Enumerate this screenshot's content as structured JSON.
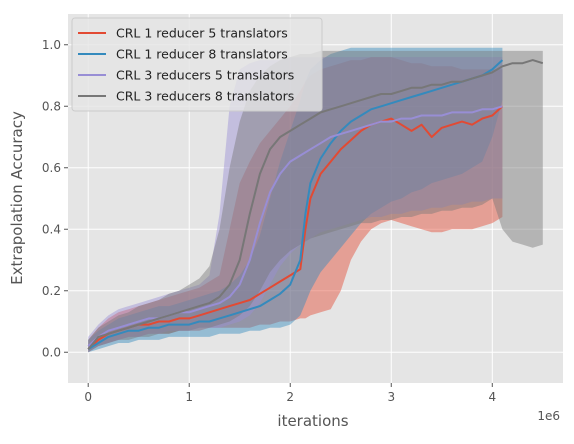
{
  "chart_data": {
    "type": "line",
    "title": "",
    "xlabel": "iterations",
    "ylabel": "Extrapolation Accuracy",
    "x_offset_label": "1e6",
    "xlim": [
      -200000,
      4700000
    ],
    "ylim": [
      -0.1,
      1.1
    ],
    "x_ticks": [
      0,
      1000000,
      2000000,
      3000000,
      4000000
    ],
    "x_tick_labels": [
      "0",
      "1",
      "2",
      "3",
      "4"
    ],
    "y_ticks": [
      0.0,
      0.2,
      0.4,
      0.6,
      0.8,
      1.0
    ],
    "y_tick_labels": [
      "0.0",
      "0.2",
      "0.4",
      "0.6",
      "0.8",
      "1.0"
    ],
    "grid": true,
    "legend_position": "top-left",
    "colors": {
      "plot_background": "#e5e5e5",
      "grid": "#ffffff",
      "tick_label": "#555555",
      "axis_label": "#555555"
    },
    "series": [
      {
        "name": "CRL 1 reducer 5 translators",
        "color": "#e24a33",
        "x": [
          0,
          100000,
          200000,
          300000,
          400000,
          500000,
          600000,
          700000,
          800000,
          900000,
          1000000,
          1100000,
          1200000,
          1300000,
          1400000,
          1500000,
          1600000,
          1700000,
          1800000,
          1900000,
          2000000,
          2100000,
          2150000,
          2200000,
          2300000,
          2400000,
          2500000,
          2600000,
          2700000,
          2800000,
          2900000,
          3000000,
          3100000,
          3200000,
          3300000,
          3400000,
          3500000,
          3600000,
          3700000,
          3800000,
          3900000,
          4000000,
          4100000
        ],
        "y": [
          0.01,
          0.04,
          0.06,
          0.07,
          0.08,
          0.09,
          0.09,
          0.1,
          0.1,
          0.11,
          0.11,
          0.12,
          0.13,
          0.14,
          0.15,
          0.16,
          0.17,
          0.19,
          0.21,
          0.23,
          0.25,
          0.27,
          0.4,
          0.5,
          0.58,
          0.62,
          0.66,
          0.69,
          0.72,
          0.74,
          0.75,
          0.76,
          0.74,
          0.72,
          0.74,
          0.7,
          0.73,
          0.74,
          0.75,
          0.74,
          0.76,
          0.77,
          0.8
        ],
        "upper": [
          0.04,
          0.08,
          0.11,
          0.13,
          0.14,
          0.15,
          0.16,
          0.17,
          0.18,
          0.19,
          0.2,
          0.21,
          0.23,
          0.25,
          0.4,
          0.55,
          0.62,
          0.68,
          0.72,
          0.76,
          0.8,
          0.85,
          0.88,
          0.9,
          0.92,
          0.93,
          0.94,
          0.95,
          0.95,
          0.96,
          0.96,
          0.96,
          0.95,
          0.94,
          0.94,
          0.93,
          0.93,
          0.93,
          0.92,
          0.92,
          0.92,
          0.92,
          0.92
        ],
        "lower": [
          0.0,
          0.02,
          0.03,
          0.04,
          0.05,
          0.05,
          0.06,
          0.06,
          0.06,
          0.07,
          0.07,
          0.07,
          0.08,
          0.08,
          0.08,
          0.08,
          0.08,
          0.09,
          0.09,
          0.1,
          0.1,
          0.11,
          0.11,
          0.12,
          0.13,
          0.14,
          0.2,
          0.3,
          0.36,
          0.4,
          0.42,
          0.43,
          0.42,
          0.41,
          0.4,
          0.39,
          0.39,
          0.4,
          0.4,
          0.4,
          0.41,
          0.42,
          0.44
        ]
      },
      {
        "name": "CRL 1 reducer 8 translators",
        "color": "#348abd",
        "x": [
          0,
          100000,
          200000,
          300000,
          400000,
          500000,
          600000,
          700000,
          800000,
          900000,
          1000000,
          1100000,
          1200000,
          1300000,
          1400000,
          1500000,
          1600000,
          1700000,
          1800000,
          1900000,
          2000000,
          2100000,
          2150000,
          2200000,
          2300000,
          2400000,
          2500000,
          2600000,
          2700000,
          2800000,
          2900000,
          3000000,
          3100000,
          3200000,
          3300000,
          3400000,
          3500000,
          3600000,
          3700000,
          3800000,
          3900000,
          4000000,
          4100000
        ],
        "y": [
          0.01,
          0.03,
          0.05,
          0.06,
          0.07,
          0.07,
          0.08,
          0.08,
          0.09,
          0.09,
          0.09,
          0.1,
          0.1,
          0.11,
          0.12,
          0.13,
          0.14,
          0.15,
          0.17,
          0.19,
          0.22,
          0.3,
          0.45,
          0.55,
          0.63,
          0.68,
          0.72,
          0.75,
          0.77,
          0.79,
          0.8,
          0.81,
          0.82,
          0.83,
          0.84,
          0.85,
          0.86,
          0.87,
          0.88,
          0.89,
          0.9,
          0.92,
          0.95
        ],
        "upper": [
          0.04,
          0.07,
          0.09,
          0.11,
          0.12,
          0.13,
          0.14,
          0.15,
          0.15,
          0.16,
          0.17,
          0.18,
          0.19,
          0.2,
          0.22,
          0.25,
          0.3,
          0.38,
          0.5,
          0.62,
          0.72,
          0.82,
          0.88,
          0.92,
          0.95,
          0.97,
          0.98,
          0.99,
          0.99,
          0.99,
          0.99,
          0.99,
          0.99,
          0.99,
          0.99,
          0.99,
          0.99,
          0.99,
          0.99,
          0.99,
          0.99,
          0.99,
          0.99
        ],
        "lower": [
          0.0,
          0.01,
          0.02,
          0.03,
          0.03,
          0.04,
          0.04,
          0.04,
          0.05,
          0.05,
          0.05,
          0.05,
          0.05,
          0.06,
          0.06,
          0.06,
          0.07,
          0.07,
          0.08,
          0.08,
          0.09,
          0.12,
          0.16,
          0.2,
          0.26,
          0.3,
          0.34,
          0.38,
          0.42,
          0.45,
          0.47,
          0.49,
          0.5,
          0.52,
          0.53,
          0.55,
          0.56,
          0.57,
          0.58,
          0.6,
          0.62,
          0.7,
          0.82
        ]
      },
      {
        "name": "CRL 3 reducers 5 translators",
        "color": "#988ed5",
        "x": [
          0,
          100000,
          200000,
          300000,
          400000,
          500000,
          600000,
          700000,
          800000,
          900000,
          1000000,
          1100000,
          1200000,
          1300000,
          1400000,
          1500000,
          1600000,
          1700000,
          1800000,
          1900000,
          2000000,
          2100000,
          2200000,
          2300000,
          2400000,
          2500000,
          2600000,
          2700000,
          2800000,
          2900000,
          3000000,
          3100000,
          3200000,
          3300000,
          3400000,
          3500000,
          3600000,
          3700000,
          3800000,
          3900000,
          4000000,
          4100000
        ],
        "y": [
          0.02,
          0.05,
          0.07,
          0.08,
          0.09,
          0.1,
          0.11,
          0.11,
          0.12,
          0.13,
          0.13,
          0.14,
          0.15,
          0.16,
          0.18,
          0.22,
          0.3,
          0.42,
          0.52,
          0.58,
          0.62,
          0.64,
          0.66,
          0.68,
          0.7,
          0.71,
          0.72,
          0.73,
          0.74,
          0.75,
          0.75,
          0.76,
          0.76,
          0.77,
          0.77,
          0.77,
          0.78,
          0.78,
          0.78,
          0.79,
          0.79,
          0.8
        ],
        "upper": [
          0.05,
          0.09,
          0.12,
          0.14,
          0.15,
          0.16,
          0.17,
          0.18,
          0.19,
          0.2,
          0.21,
          0.22,
          0.25,
          0.45,
          0.8,
          0.92,
          0.94,
          0.95,
          0.95,
          0.95,
          0.96,
          0.96,
          0.96,
          0.96,
          0.96,
          0.96,
          0.96,
          0.96,
          0.96,
          0.96,
          0.96,
          0.96,
          0.96,
          0.96,
          0.96,
          0.96,
          0.96,
          0.96,
          0.96,
          0.96,
          0.96,
          0.96
        ],
        "lower": [
          0.0,
          0.02,
          0.03,
          0.04,
          0.05,
          0.05,
          0.06,
          0.06,
          0.07,
          0.07,
          0.07,
          0.08,
          0.08,
          0.08,
          0.09,
          0.1,
          0.12,
          0.16,
          0.22,
          0.28,
          0.32,
          0.35,
          0.37,
          0.39,
          0.4,
          0.41,
          0.42,
          0.43,
          0.44,
          0.44,
          0.45,
          0.45,
          0.46,
          0.46,
          0.47,
          0.47,
          0.48,
          0.48,
          0.49,
          0.49,
          0.5,
          0.5
        ]
      },
      {
        "name": "CRL 3 reducers 8 translators",
        "color": "#777777",
        "x": [
          0,
          100000,
          200000,
          300000,
          400000,
          500000,
          600000,
          700000,
          800000,
          900000,
          1000000,
          1100000,
          1200000,
          1300000,
          1400000,
          1500000,
          1600000,
          1700000,
          1800000,
          1900000,
          2000000,
          2100000,
          2200000,
          2300000,
          2400000,
          2500000,
          2600000,
          2700000,
          2800000,
          2900000,
          3000000,
          3100000,
          3200000,
          3300000,
          3400000,
          3500000,
          3600000,
          3700000,
          3800000,
          3900000,
          4000000,
          4100000,
          4200000,
          4300000,
          4400000,
          4500000
        ],
        "y": [
          0.01,
          0.05,
          0.06,
          0.07,
          0.08,
          0.09,
          0.1,
          0.11,
          0.12,
          0.13,
          0.14,
          0.15,
          0.16,
          0.18,
          0.22,
          0.3,
          0.45,
          0.58,
          0.66,
          0.7,
          0.72,
          0.74,
          0.76,
          0.78,
          0.79,
          0.8,
          0.81,
          0.82,
          0.83,
          0.84,
          0.84,
          0.85,
          0.86,
          0.86,
          0.87,
          0.87,
          0.88,
          0.88,
          0.89,
          0.9,
          0.91,
          0.93,
          0.94,
          0.94,
          0.95,
          0.94
        ],
        "upper": [
          0.04,
          0.08,
          0.1,
          0.12,
          0.13,
          0.15,
          0.16,
          0.17,
          0.19,
          0.2,
          0.22,
          0.24,
          0.28,
          0.4,
          0.6,
          0.75,
          0.85,
          0.9,
          0.93,
          0.95,
          0.96,
          0.97,
          0.97,
          0.98,
          0.98,
          0.98,
          0.98,
          0.98,
          0.98,
          0.98,
          0.98,
          0.98,
          0.98,
          0.98,
          0.98,
          0.98,
          0.98,
          0.98,
          0.98,
          0.98,
          0.98,
          0.98,
          0.98,
          0.98,
          0.98,
          0.98
        ],
        "lower": [
          0.0,
          0.02,
          0.03,
          0.04,
          0.04,
          0.05,
          0.05,
          0.06,
          0.06,
          0.07,
          0.07,
          0.08,
          0.08,
          0.09,
          0.1,
          0.12,
          0.15,
          0.2,
          0.26,
          0.3,
          0.33,
          0.35,
          0.37,
          0.38,
          0.39,
          0.4,
          0.41,
          0.42,
          0.42,
          0.43,
          0.43,
          0.44,
          0.44,
          0.45,
          0.45,
          0.46,
          0.46,
          0.47,
          0.47,
          0.48,
          0.5,
          0.4,
          0.36,
          0.35,
          0.34,
          0.35
        ]
      }
    ]
  }
}
